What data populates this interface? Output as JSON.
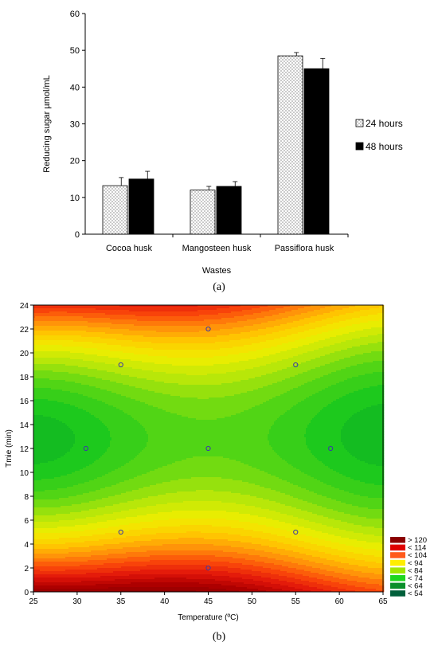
{
  "captions": {
    "a": "(a)",
    "b": "(b)"
  },
  "chart_data": [
    {
      "type": "bar",
      "ylabel": "Reducing sugar µmol/mL",
      "xlabel": "Wastes",
      "ylim": [
        0,
        60
      ],
      "yticks": [
        0,
        10,
        20,
        30,
        40,
        50,
        60
      ],
      "categories": [
        "Cocoa husk",
        "Mangosteen husk",
        "Passiflora husk"
      ],
      "series": [
        {
          "name": "24 hours",
          "values": [
            13.2,
            12.0,
            48.5
          ],
          "errors": [
            2.2,
            1.0,
            0.9
          ],
          "color": "#ffffff",
          "pattern": "dotted"
        },
        {
          "name": "48 hours",
          "values": [
            15.0,
            13.0,
            45.0
          ],
          "errors": [
            2.1,
            1.3,
            2.8
          ],
          "color": "#000000",
          "pattern": "solid"
        }
      ],
      "legend_position": "right",
      "grid": false
    },
    {
      "type": "contour",
      "xlabel": "Temperature (ºC)",
      "ylabel": "Tmie (min)",
      "xlim": [
        25,
        65
      ],
      "ylim": [
        0,
        24
      ],
      "xticks": [
        25,
        30,
        35,
        40,
        45,
        50,
        55,
        60,
        65
      ],
      "yticks": [
        0,
        2,
        4,
        6,
        8,
        10,
        12,
        14,
        16,
        18,
        20,
        22,
        24
      ],
      "design_points": [
        {
          "x": 45,
          "y": 22
        },
        {
          "x": 35,
          "y": 19
        },
        {
          "x": 55,
          "y": 19
        },
        {
          "x": 31,
          "y": 12
        },
        {
          "x": 45,
          "y": 12
        },
        {
          "x": 59,
          "y": 12
        },
        {
          "x": 35,
          "y": 5
        },
        {
          "x": 55,
          "y": 5
        },
        {
          "x": 45,
          "y": 2
        }
      ],
      "legend": [
        {
          "label": "> 120",
          "color": "#8b0000"
        },
        {
          "label": "< 114",
          "color": "#e00000"
        },
        {
          "label": "< 104",
          "color": "#ff5a1a"
        },
        {
          "label": "< 94",
          "color": "#ffee00"
        },
        {
          "label": "< 84",
          "color": "#a2e600"
        },
        {
          "label": "< 74",
          "color": "#1fd61f"
        },
        {
          "label": "< 64",
          "color": "#0a8f2a"
        },
        {
          "label": "< 54",
          "color": "#005f3a"
        }
      ],
      "legend_position": "bottom-right"
    }
  ]
}
